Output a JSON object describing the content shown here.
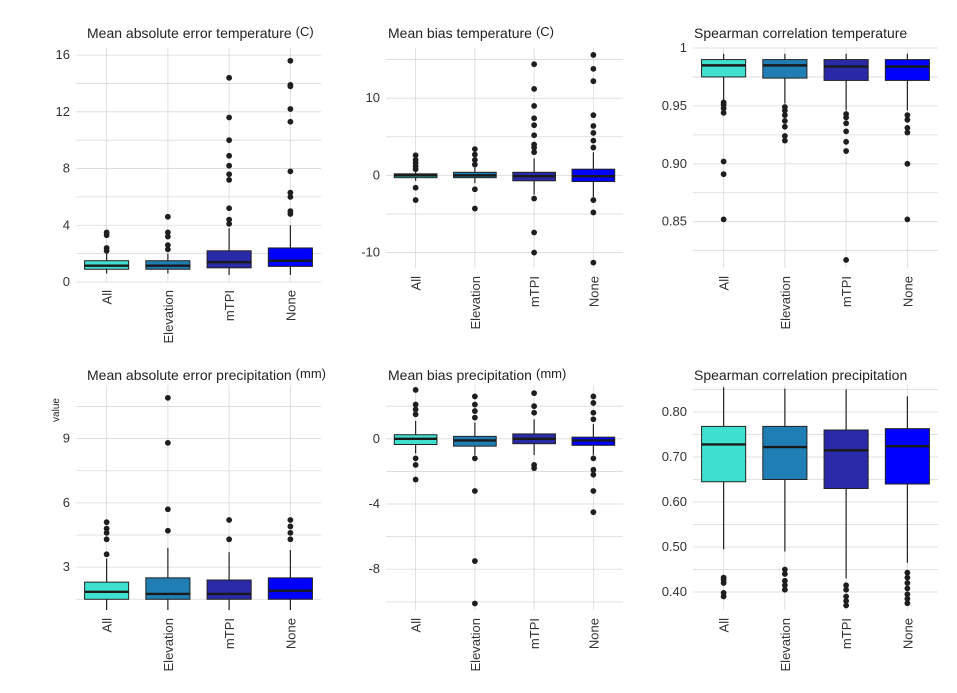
{
  "shared_ylabel": "value",
  "chart_data": [
    {
      "type": "box",
      "title": "Mean absolute error temperature",
      "unit": "(C)",
      "categories": [
        "All",
        "Elevation",
        "mTPI",
        "None"
      ],
      "colors": [
        "#40e0d0",
        "#1f7fb5",
        "#2a2aa8",
        "#0000ff"
      ],
      "ylim": [
        0,
        16.5
      ],
      "yticks": [
        0,
        4,
        8,
        12,
        16
      ],
      "grid": true,
      "boxes": [
        {
          "q1": 0.9,
          "median": 1.15,
          "q3": 1.5,
          "whisker_low": 0.6,
          "whisker_high": 2.0,
          "outliers": [
            2.2,
            2.4,
            3.3,
            3.5
          ]
        },
        {
          "q1": 0.9,
          "median": 1.15,
          "q3": 1.5,
          "whisker_low": 0.6,
          "whisker_high": 2.0,
          "outliers": [
            2.3,
            2.6,
            3.2,
            3.5,
            4.6
          ]
        },
        {
          "q1": 1.0,
          "median": 1.4,
          "q3": 2.2,
          "whisker_low": 0.5,
          "whisker_high": 3.8,
          "outliers": [
            4.1,
            4.4,
            5.2,
            7.2,
            7.6,
            8.2,
            8.9,
            10.0,
            11.6,
            14.4
          ]
        },
        {
          "q1": 1.1,
          "median": 1.5,
          "q3": 2.4,
          "whisker_low": 0.5,
          "whisker_high": 4.0,
          "outliers": [
            4.8,
            5.0,
            6.0,
            6.3,
            7.8,
            11.3,
            12.2,
            13.8,
            13.9,
            15.6
          ]
        }
      ]
    },
    {
      "type": "box",
      "title": "Mean bias temperature",
      "unit": "(C)",
      "categories": [
        "All",
        "Elevation",
        "mTPI",
        "None"
      ],
      "colors": [
        "#40e0d0",
        "#1f7fb5",
        "#2a2aa8",
        "#0000ff"
      ],
      "ylim": [
        -12,
        16.5
      ],
      "yticks": [
        -10,
        0,
        10
      ],
      "grid": true,
      "boxes": [
        {
          "q1": -0.3,
          "median": 0.0,
          "q3": 0.2,
          "whisker_low": -0.7,
          "whisker_high": 0.5,
          "outliers": [
            -3.2,
            -1.6,
            0.8,
            1.2,
            1.6,
            2.0,
            2.6
          ]
        },
        {
          "q1": -0.3,
          "median": 0.0,
          "q3": 0.4,
          "whisker_low": -1.0,
          "whisker_high": 1.0,
          "outliers": [
            -4.3,
            -1.8,
            1.4,
            2.0,
            2.7,
            3.4
          ]
        },
        {
          "q1": -0.7,
          "median": -0.1,
          "q3": 0.4,
          "whisker_low": -2.5,
          "whisker_high": 2.2,
          "outliers": [
            -10.0,
            -7.4,
            -3.0,
            3.0,
            3.6,
            4.0,
            5.2,
            6.5,
            7.4,
            9.0,
            11.2,
            14.4
          ]
        },
        {
          "q1": -0.8,
          "median": -0.1,
          "q3": 0.8,
          "whisker_low": -2.8,
          "whisker_high": 3.0,
          "outliers": [
            -11.3,
            -4.8,
            -3.2,
            3.6,
            4.5,
            5.5,
            6.4,
            7.8,
            12.2,
            13.8,
            15.6
          ]
        }
      ]
    },
    {
      "type": "box",
      "title": "Spearman correlation temperature",
      "unit": "",
      "categories": [
        "All",
        "Elevation",
        "mTPI",
        "None"
      ],
      "colors": [
        "#40e0d0",
        "#1f7fb5",
        "#2a2aa8",
        "#0000ff"
      ],
      "ylim": [
        0.81,
        1.0
      ],
      "yticks": [
        0.85,
        0.9,
        0.95,
        1.0
      ],
      "grid": true,
      "boxes": [
        {
          "q1": 0.975,
          "median": 0.985,
          "q3": 0.99,
          "whisker_low": 0.955,
          "whisker_high": 0.995,
          "outliers": [
            0.852,
            0.891,
            0.902,
            0.944,
            0.948,
            0.951,
            0.953
          ]
        },
        {
          "q1": 0.974,
          "median": 0.985,
          "q3": 0.99,
          "whisker_low": 0.952,
          "whisker_high": 0.995,
          "outliers": [
            0.92,
            0.924,
            0.932,
            0.937,
            0.942,
            0.946,
            0.949
          ]
        },
        {
          "q1": 0.972,
          "median": 0.984,
          "q3": 0.99,
          "whisker_low": 0.946,
          "whisker_high": 0.995,
          "outliers": [
            0.817,
            0.911,
            0.919,
            0.928,
            0.935,
            0.94,
            0.943
          ]
        },
        {
          "q1": 0.972,
          "median": 0.984,
          "q3": 0.99,
          "whisker_low": 0.946,
          "whisker_high": 0.995,
          "outliers": [
            0.852,
            0.9,
            0.927,
            0.931,
            0.938,
            0.942
          ]
        }
      ]
    },
    {
      "type": "box",
      "title": "Mean absolute error precipitation",
      "unit": "(mm)",
      "categories": [
        "All",
        "Elevation",
        "mTPI",
        "None"
      ],
      "colors": [
        "#40e0d0",
        "#1f7fb5",
        "#2a2aa8",
        "#0000ff"
      ],
      "ylim": [
        1.0,
        11.5
      ],
      "yticks": [
        3,
        6,
        9
      ],
      "grid": true,
      "boxes": [
        {
          "q1": 1.5,
          "median": 1.85,
          "q3": 2.3,
          "whisker_low": 1.0,
          "whisker_high": 3.4,
          "outliers": [
            3.6,
            4.3,
            4.6,
            4.8,
            5.1
          ]
        },
        {
          "q1": 1.5,
          "median": 1.75,
          "q3": 2.5,
          "whisker_low": 1.0,
          "whisker_high": 3.9,
          "outliers": [
            4.7,
            5.7,
            8.8,
            10.9
          ]
        },
        {
          "q1": 1.5,
          "median": 1.75,
          "q3": 2.4,
          "whisker_low": 1.0,
          "whisker_high": 3.7,
          "outliers": [
            4.3,
            5.2
          ]
        },
        {
          "q1": 1.5,
          "median": 1.9,
          "q3": 2.5,
          "whisker_low": 1.0,
          "whisker_high": 3.8,
          "outliers": [
            4.3,
            4.6,
            4.9,
            5.2
          ]
        }
      ]
    },
    {
      "type": "box",
      "title": "Mean bias precipitation",
      "unit": "(mm)",
      "categories": [
        "All",
        "Elevation",
        "mTPI",
        "None"
      ],
      "colors": [
        "#40e0d0",
        "#1f7fb5",
        "#2a2aa8",
        "#0000ff"
      ],
      "ylim": [
        -10.5,
        3.3
      ],
      "yticks": [
        -8,
        -4,
        0
      ],
      "grid": true,
      "boxes": [
        {
          "q1": -0.35,
          "median": 0.0,
          "q3": 0.25,
          "whisker_low": -0.9,
          "whisker_high": 1.1,
          "outliers": [
            -2.5,
            -1.6,
            -1.2,
            1.5,
            1.8,
            2.1,
            3.0
          ]
        },
        {
          "q1": -0.45,
          "median": -0.1,
          "q3": 0.15,
          "whisker_low": -1.0,
          "whisker_high": 1.0,
          "outliers": [
            -10.1,
            -7.5,
            -3.2,
            -1.2,
            1.3,
            1.7,
            2.1,
            2.6
          ]
        },
        {
          "q1": -0.3,
          "median": 0.0,
          "q3": 0.3,
          "whisker_low": -1.0,
          "whisker_high": 1.2,
          "outliers": [
            -1.8,
            -1.6,
            1.6,
            2.0,
            2.8
          ]
        },
        {
          "q1": -0.4,
          "median": -0.1,
          "q3": 0.1,
          "whisker_low": -1.0,
          "whisker_high": 0.9,
          "outliers": [
            -4.5,
            -3.2,
            -2.2,
            -1.9,
            -1.2,
            1.2,
            1.6,
            2.2,
            2.6
          ]
        }
      ]
    },
    {
      "type": "box",
      "title": "Spearman correlation precipitation",
      "unit": "",
      "categories": [
        "All",
        "Elevation",
        "mTPI",
        "None"
      ],
      "colors": [
        "#40e0d0",
        "#1f7fb5",
        "#2a2aa8",
        "#0000ff"
      ],
      "ylim": [
        0.36,
        0.86
      ],
      "yticks": [
        0.4,
        0.5,
        0.6,
        0.7,
        0.8
      ],
      "grid": true,
      "boxes": [
        {
          "q1": 0.645,
          "median": 0.728,
          "q3": 0.768,
          "whisker_low": 0.495,
          "whisker_high": 0.855,
          "outliers": [
            0.39,
            0.398,
            0.42,
            0.427,
            0.432
          ]
        },
        {
          "q1": 0.65,
          "median": 0.722,
          "q3": 0.768,
          "whisker_low": 0.49,
          "whisker_high": 0.852,
          "outliers": [
            0.405,
            0.415,
            0.425,
            0.44,
            0.45
          ]
        },
        {
          "q1": 0.63,
          "median": 0.715,
          "q3": 0.76,
          "whisker_low": 0.43,
          "whisker_high": 0.85,
          "outliers": [
            0.37,
            0.38,
            0.39,
            0.405,
            0.415
          ]
        },
        {
          "q1": 0.64,
          "median": 0.724,
          "q3": 0.763,
          "whisker_low": 0.465,
          "whisker_high": 0.835,
          "outliers": [
            0.375,
            0.385,
            0.395,
            0.408,
            0.42,
            0.432,
            0.443
          ]
        }
      ]
    }
  ]
}
